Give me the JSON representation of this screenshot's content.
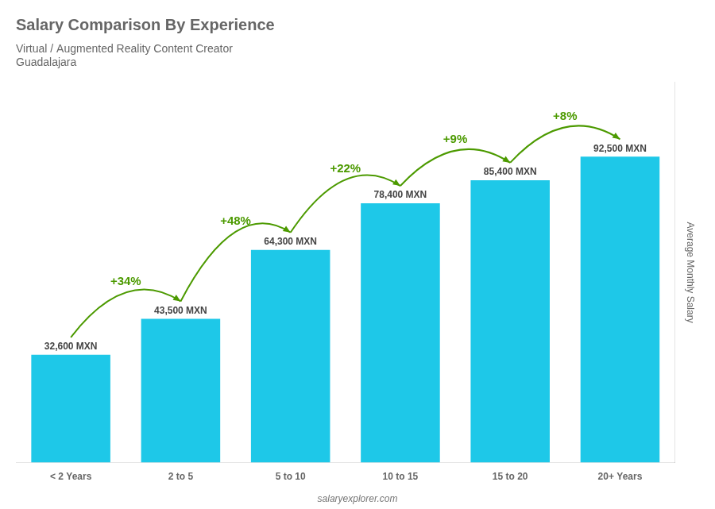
{
  "chart_data": {
    "type": "bar",
    "title": "Salary Comparison By Experience",
    "subtitle": [
      "Virtual / Augmented Reality Content Creator",
      "Guadalajara"
    ],
    "ylabel": "Average Monthly Salary",
    "categories": [
      "< 2 Years",
      "2 to 5",
      "5 to 10",
      "10 to 15",
      "15 to 20",
      "20+ Years"
    ],
    "values": [
      32600,
      43500,
      64300,
      78400,
      85400,
      92500
    ],
    "value_labels": [
      "32,600 MXN",
      "43,500 MXN",
      "64,300 MXN",
      "78,400 MXN",
      "85,400 MXN",
      "92,500 MXN"
    ],
    "data_labels": true,
    "color": "#1ec8e8",
    "ylim": [
      0,
      115000
    ],
    "grid": false,
    "tick_labels": "x",
    "annotations": [
      "+34%",
      "+48%",
      "+22%",
      "+9%",
      "+8%"
    ],
    "caption": "salaryexplorer.com"
  }
}
